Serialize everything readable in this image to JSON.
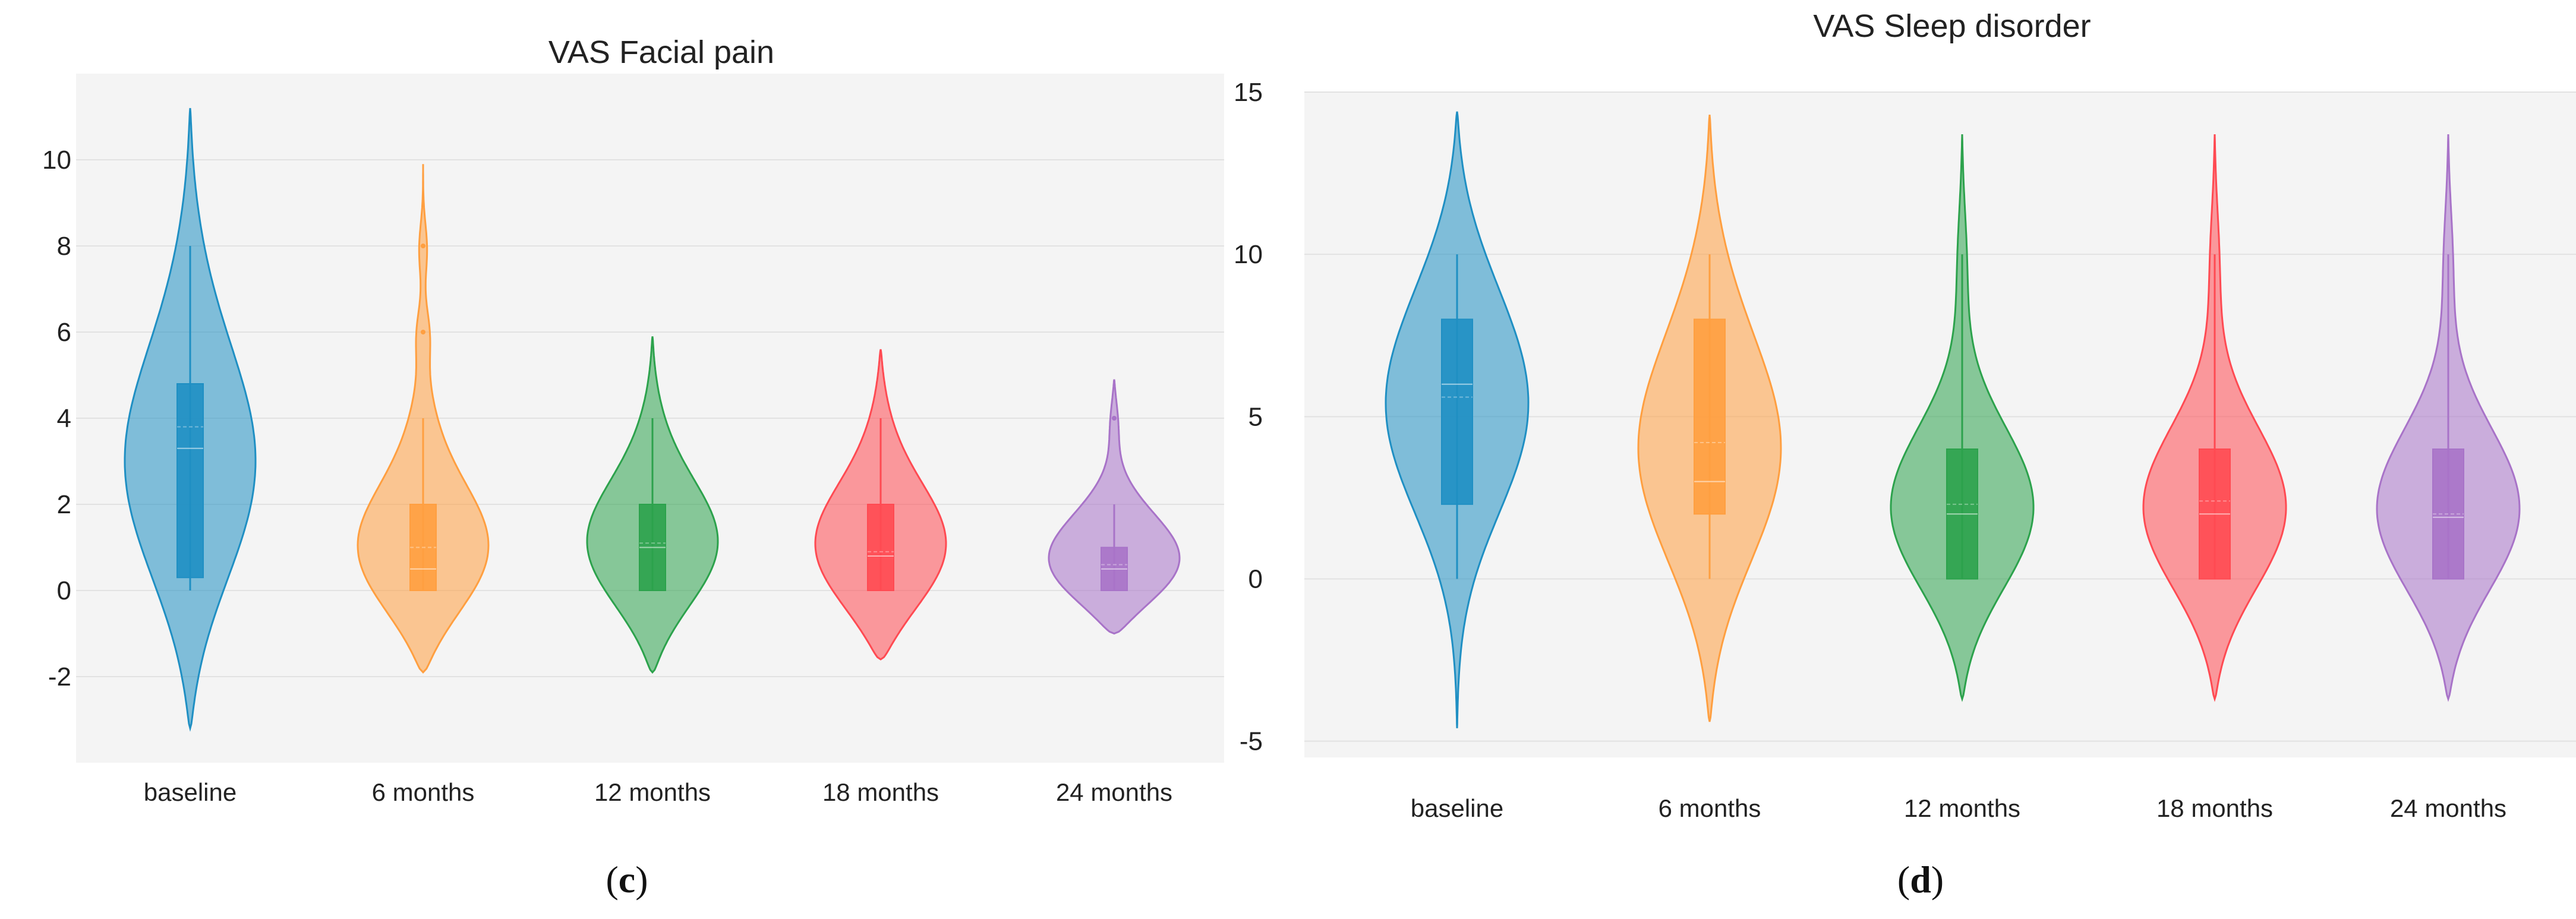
{
  "chart_data": [
    {
      "type": "violin",
      "panel_label": "c",
      "title": "VAS Facial pain",
      "xlabel": "",
      "ylabel": "",
      "categories": [
        "baseline",
        "6 months",
        "12 months",
        "18 months",
        "24 months"
      ],
      "yticks": [
        10,
        8,
        6,
        4,
        2,
        0,
        -2
      ],
      "ytick_labels": [
        "10",
        "8",
        "6",
        "4",
        "2",
        "0",
        "-2"
      ],
      "ylim": [
        -4,
        12
      ],
      "grid": true,
      "legend": "none",
      "series": [
        {
          "name": "baseline",
          "color": "#1f8fc3",
          "violin_min": -3.2,
          "violin_max": 11.2,
          "whisker_low": 0,
          "whisker_high": 8,
          "q1": 0.3,
          "median": 3.3,
          "mean": 3.8,
          "q3": 4.8,
          "outliers": []
        },
        {
          "name": "6 months",
          "color": "#ff9f40",
          "violin_min": -1.9,
          "violin_max": 9.9,
          "whisker_low": 0,
          "whisker_high": 4,
          "q1": 0,
          "median": 0.5,
          "mean": 1.0,
          "q3": 2,
          "outliers": [
            8,
            6
          ]
        },
        {
          "name": "12 months",
          "color": "#2ca24c",
          "violin_min": -1.9,
          "violin_max": 5.9,
          "whisker_low": 0,
          "whisker_high": 4,
          "q1": 0,
          "median": 1.0,
          "mean": 1.1,
          "q3": 2,
          "outliers": []
        },
        {
          "name": "18 months",
          "color": "#ff4a52",
          "violin_min": -1.6,
          "violin_max": 5.6,
          "whisker_low": 0,
          "whisker_high": 4,
          "q1": 0,
          "median": 0.8,
          "mean": 0.9,
          "q3": 2,
          "outliers": []
        },
        {
          "name": "24 months",
          "color": "#a873c8",
          "violin_min": -1.0,
          "violin_max": 4.9,
          "whisker_low": 0,
          "whisker_high": 2,
          "q1": 0,
          "median": 0.5,
          "mean": 0.6,
          "q3": 1,
          "outliers": [
            4
          ]
        }
      ]
    },
    {
      "type": "violin",
      "panel_label": "d",
      "title": "VAS Sleep disorder",
      "xlabel": "",
      "ylabel": "",
      "categories": [
        "baseline",
        "6 months",
        "12 months",
        "18 months",
        "24 months"
      ],
      "yticks": [
        15,
        10,
        5,
        0,
        -5
      ],
      "ytick_labels": [
        "15",
        "10",
        "5",
        "0",
        "-5"
      ],
      "ylim": [
        -5.5,
        15
      ],
      "grid": true,
      "legend": "none",
      "series": [
        {
          "name": "baseline",
          "color": "#1f8fc3",
          "violin_min": -4.6,
          "violin_max": 14.4,
          "whisker_low": 0,
          "whisker_high": 10,
          "q1": 2.3,
          "median": 6.0,
          "mean": 5.6,
          "q3": 8,
          "outliers": []
        },
        {
          "name": "6 months",
          "color": "#ff9f40",
          "violin_min": -4.4,
          "violin_max": 14.3,
          "whisker_low": 0,
          "whisker_high": 10,
          "q1": 2,
          "median": 3.0,
          "mean": 4.2,
          "q3": 8,
          "outliers": []
        },
        {
          "name": "12 months",
          "color": "#2ca24c",
          "violin_min": -3.7,
          "violin_max": 13.7,
          "whisker_low": 0,
          "whisker_high": 10,
          "q1": 0,
          "median": 2.0,
          "mean": 2.3,
          "q3": 4,
          "outliers": []
        },
        {
          "name": "18 months",
          "color": "#ff4a52",
          "violin_min": -3.7,
          "violin_max": 13.7,
          "whisker_low": 0,
          "whisker_high": 10,
          "q1": 0,
          "median": 2.0,
          "mean": 2.4,
          "q3": 4,
          "outliers": []
        },
        {
          "name": "24 months",
          "color": "#a873c8",
          "violin_min": -3.7,
          "violin_max": 13.7,
          "whisker_low": 0,
          "whisker_high": 10,
          "q1": 0,
          "median": 1.9,
          "mean": 2.0,
          "q3": 4,
          "outliers": []
        }
      ]
    }
  ]
}
